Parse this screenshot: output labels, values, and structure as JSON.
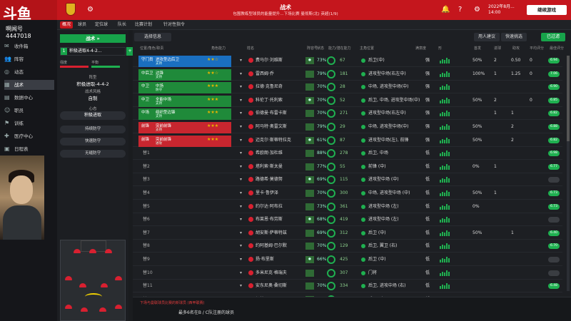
{
  "app": {
    "logo_text": "斗鱼",
    "title": "战术",
    "subtitle": "包围教练型球员的能量提升...下场比赛 曼彻斯(北) 英超(1/9)",
    "date_line1": "2022年8月...",
    "date_line2": "14:00",
    "continue_label": "继续游戏"
  },
  "sidebar": {
    "streamer_name": "啊闻号",
    "room_id": "4447018",
    "items": [
      {
        "label": "收件箱",
        "icon": "inbox-icon"
      },
      {
        "label": "阵容",
        "icon": "squad-icon"
      },
      {
        "label": "动态",
        "icon": "dynamics-icon"
      },
      {
        "label": "战术",
        "icon": "tactics-icon",
        "active": true
      },
      {
        "label": "数据中心",
        "icon": "data-icon"
      },
      {
        "label": "职员",
        "icon": "staff-icon"
      },
      {
        "label": "训练",
        "icon": "training-icon"
      },
      {
        "label": "医疗中心",
        "icon": "medical-icon"
      },
      {
        "label": "日程表",
        "icon": "calendar-icon"
      }
    ]
  },
  "subnav": {
    "tabs": [
      "概况",
      "球员",
      "定位球",
      "队长",
      "比赛计划",
      "针对性指令"
    ]
  },
  "left_panel": {
    "header": "战术 »",
    "formation_num": "1",
    "formation_name": "积极进取4-4-2...",
    "bars_left": "强度",
    "bars_right": "平衡",
    "type_label": "阵型",
    "type_value": "积极进取-4-4-2",
    "style_label": "战术风格",
    "style_value": "自制",
    "mentality_label": "心态",
    "mentality_value": "积极进取",
    "btn1": "持续防守",
    "btn2": "快速防守",
    "btn3": "无缝防守"
  },
  "toolbar": {
    "sort_label": "选择信息",
    "user_suggest": "用人建议",
    "quick_pick": "快速挑选",
    "confirmed": "已过滤"
  },
  "headers": [
    "位置/角色/职责",
    "角色能力",
    "姓名",
    "阵容号",
    "状态",
    "能力/潜在能力",
    "主角位置",
    "满意度",
    "形",
    "首发",
    "进球",
    "助攻",
    "平均评分",
    "最佳评分"
  ],
  "rows": [
    {
      "pos": "守门员",
      "role": "进攻型边后卫",
      "duty": "支持",
      "color": "blue",
      "stars": "★★☆",
      "name": "费马尔·刘维斯",
      "pct": "73%",
      "ca": "67",
      "position_text": "后卫(中)",
      "sat": "强",
      "form": "50%",
      "start": "2",
      "goals": "0.50",
      "assists": "0",
      "rating": "6.94"
    },
    {
      "pos": "中后卫",
      "role": "边锋",
      "duty": "支持",
      "color": "green",
      "stars": "★★☆",
      "name": "雷西姆·乔",
      "pct": "79%",
      "ca": "181",
      "position_text": "进攻型中场(右左中)",
      "sat": "强",
      "form": "100%",
      "start": "1",
      "goals": "1.25",
      "assists": "0",
      "rating": "7.06"
    },
    {
      "pos": "中卫",
      "role": "中场",
      "duty": "防守",
      "color": "green",
      "stars": "★★★",
      "name": "拉德·克鲁尼奇",
      "pct": "70%",
      "ca": "28",
      "position_text": "中场, 进攻型中场(中)",
      "sat": "强",
      "form": "",
      "start": "",
      "goals": "",
      "assists": "",
      "rating": "6.90"
    },
    {
      "pos": "中卫",
      "role": "全能中场",
      "duty": "支持",
      "color": "green",
      "stars": "★★★",
      "name": "科伦丁·托利索",
      "pct": "70%",
      "ca": "52",
      "position_text": "后卫, 中场, 进攻型中场(中)",
      "sat": "强",
      "form": "50%",
      "start": "2",
      "goals": "",
      "assists": "0",
      "rating": "6.85"
    },
    {
      "pos": "中场",
      "role": "组织型边锋",
      "duty": "支持",
      "color": "green",
      "stars": "★★★",
      "name": "伯德曼·布雷卡斯",
      "pct": "70%",
      "ca": "271",
      "position_text": "进攻型中场(右左中)",
      "sat": "强",
      "form": "",
      "start": "1",
      "goals": "1",
      "assists": "",
      "rating": "6.82"
    },
    {
      "pos": "前锋",
      "role": "突前前锋",
      "duty": "支持",
      "color": "red",
      "stars": "★★★",
      "name": "阿马特·奥雷文斯",
      "pct": "79%",
      "ca": "29",
      "position_text": "中场, 进攻型中场(中)",
      "sat": "强",
      "form": "50%",
      "start": "",
      "goals": "2",
      "assists": "",
      "rating": "6.88"
    },
    {
      "pos": "前锋",
      "role": "突前前锋",
      "duty": "进攻",
      "color": "red",
      "stars": "★★★",
      "name": "迈克尔·斯蒂特拉克",
      "pct": "61%",
      "ca": "87",
      "position_text": "进攻型中场(左), 前锋",
      "sat": "强",
      "form": "50%",
      "start": "",
      "goals": "2",
      "assists": "",
      "rating": "6.82"
    },
    {
      "pos": "替1",
      "role": "",
      "duty": "",
      "color": "",
      "stars": "",
      "name": "希欧朗·加杜维",
      "pct": "88%",
      "ca": "278",
      "position_text": "后卫, 中场",
      "sat": "低",
      "form": "",
      "start": "",
      "goals": "",
      "assists": "",
      "rating": "6.98"
    },
    {
      "pos": "替2",
      "role": "",
      "duty": "",
      "color": "",
      "stars": "",
      "name": "塔利索·斯太曼",
      "pct": "77%",
      "ca": "55",
      "position_text": "前锋 (中)",
      "sat": "低",
      "form": "0%",
      "start": "1",
      "goals": "",
      "assists": "",
      "rating": "6.77"
    },
    {
      "pos": "替3",
      "role": "",
      "duty": "",
      "color": "",
      "stars": "",
      "name": "路德希·莫德努",
      "pct": "69%",
      "ca": "115",
      "position_text": "进攻型中场 (中)",
      "sat": "低",
      "form": "",
      "start": "",
      "goals": "",
      "assists": "",
      "rating": ""
    },
    {
      "pos": "替4",
      "role": "",
      "duty": "",
      "color": "",
      "stars": "",
      "name": "里卡·鲁伊泽",
      "pct": "70%",
      "ca": "300",
      "position_text": "中场, 进攻型中场 (中)",
      "sat": "低",
      "form": "50%",
      "start": "1",
      "goals": "",
      "assists": "",
      "rating": "6.73"
    },
    {
      "pos": "替5",
      "role": "",
      "duty": "",
      "color": "",
      "stars": "",
      "name": "约尔达·阿布拉",
      "pct": "73%",
      "ca": "361",
      "position_text": "进攻型中场 (左)",
      "sat": "低",
      "form": "0%",
      "start": "",
      "goals": "",
      "assists": "",
      "rating": "6.73"
    },
    {
      "pos": "替6",
      "role": "",
      "duty": "",
      "color": "",
      "stars": "",
      "name": "布莱恩·布劳斯",
      "pct": "68%",
      "ca": "419",
      "position_text": "进攻型中场 (左)",
      "sat": "低",
      "form": "",
      "start": "",
      "goals": "",
      "assists": "",
      "rating": ""
    },
    {
      "pos": "替7",
      "role": "",
      "duty": "",
      "color": "",
      "stars": "",
      "name": "胡安斯·萨蒂特兹",
      "pct": "69%",
      "ca": "312",
      "position_text": "后卫 (中)",
      "sat": "低",
      "form": "50%",
      "start": "",
      "goals": "1",
      "assists": "",
      "rating": "6.40"
    },
    {
      "pos": "替8",
      "role": "",
      "duty": "",
      "color": "",
      "stars": "",
      "name": "约阿基姆·巴尔默",
      "pct": "70%",
      "ca": "129",
      "position_text": "后卫, 翼卫 (右)",
      "sat": "低",
      "form": "",
      "start": "",
      "goals": "",
      "assists": "",
      "rating": "6.70"
    },
    {
      "pos": "替9",
      "role": "",
      "duty": "",
      "color": "",
      "stars": "",
      "name": "扬·布里斯",
      "pct": "66%",
      "ca": "425",
      "position_text": "后卫 (中)",
      "sat": "低",
      "form": "",
      "start": "",
      "goals": "",
      "assists": "",
      "rating": ""
    },
    {
      "pos": "替10",
      "role": "",
      "duty": "",
      "color": "",
      "stars": "",
      "name": "多米尼克·格瑞夫",
      "pct": "",
      "ca": "307",
      "position_text": "门将",
      "sat": "低",
      "form": "",
      "start": "",
      "goals": "",
      "assists": "",
      "rating": ""
    },
    {
      "pos": "替11",
      "role": "",
      "duty": "",
      "color": "",
      "stars": "",
      "name": "安东尼奥·桑切斯",
      "pct": "70%",
      "ca": "334",
      "position_text": "后卫, 进攻中场 (右)",
      "sat": "低",
      "form": "",
      "start": "",
      "goals": "",
      "assists": "",
      "rating": "6.48"
    },
    {
      "pos": "替12",
      "role": "",
      "duty": "",
      "color": "",
      "stars": "",
      "name": "佩特·巴巴",
      "pct": "66%",
      "ca": "430",
      "position_text": "后卫 (中)",
      "sat": "低",
      "form": "",
      "start": "",
      "goals": "",
      "assists": "",
      "rating": "6.94"
    }
  ],
  "footer": {
    "notice": "下场与曼联球员比赛的新球员 (西甲联赛)",
    "line": "最多6名在B / C队注册的球员"
  },
  "colors": {
    "brand_red": "#c5161d",
    "accent_green": "#17a34a"
  }
}
